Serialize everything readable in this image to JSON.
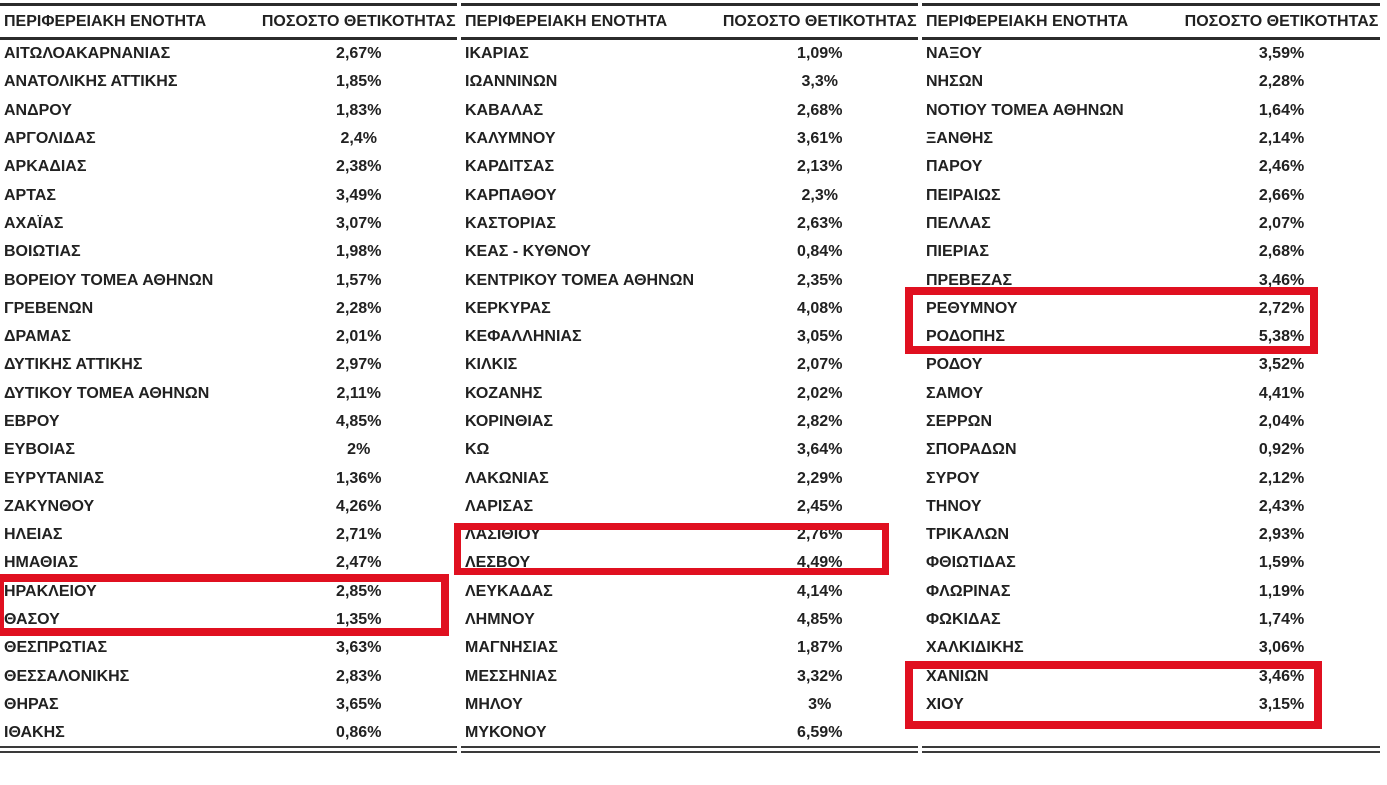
{
  "colors": {
    "highlight_red": "#e01020",
    "rule_line": "#2b2b2b",
    "text": "#212121",
    "background": "#ffffff"
  },
  "header": {
    "region_label": "ΠΕΡΙΦΕΡΕΙΑΚΗ ΕΝΟΤΗΤΑ",
    "value_label": "ΠΟΣΟΣΤΟ ΘΕΤΙΚΟΤΗΤΑΣ"
  },
  "highlighted_regions": [
    "ΗΡΑΚΛΕΙΟΥ",
    "ΛΑΣΙΘΙΟΥ",
    "ΡΕΘΥΜΝΟΥ",
    "ΧΑΝΙΩΝ"
  ],
  "tables": [
    {
      "rows": [
        {
          "region": "ΑΙΤΩΛΟΑΚΑΡΝΑΝΙΑΣ",
          "value": "2,67%",
          "highlighted": false
        },
        {
          "region": "ΑΝΑΤΟΛΙΚΗΣ ΑΤΤΙΚΗΣ",
          "value": "1,85%",
          "highlighted": false
        },
        {
          "region": "ΑΝΔΡΟΥ",
          "value": "1,83%",
          "highlighted": false
        },
        {
          "region": "ΑΡΓΟΛΙΔΑΣ",
          "value": "2,4%",
          "highlighted": false
        },
        {
          "region": "ΑΡΚΑΔΙΑΣ",
          "value": "2,38%",
          "highlighted": false
        },
        {
          "region": "ΑΡΤΑΣ",
          "value": "3,49%",
          "highlighted": false
        },
        {
          "region": "ΑΧΑΪΑΣ",
          "value": "3,07%",
          "highlighted": false
        },
        {
          "region": "ΒΟΙΩΤΙΑΣ",
          "value": "1,98%",
          "highlighted": false
        },
        {
          "region": "ΒΟΡΕΙΟΥ ΤΟΜΕΑ ΑΘΗΝΩΝ",
          "value": "1,57%",
          "highlighted": false
        },
        {
          "region": "ΓΡΕΒΕΝΩΝ",
          "value": "2,28%",
          "highlighted": false
        },
        {
          "region": "ΔΡΑΜΑΣ",
          "value": "2,01%",
          "highlighted": false
        },
        {
          "region": "ΔΥΤΙΚΗΣ ΑΤΤΙΚΗΣ",
          "value": "2,97%",
          "highlighted": false
        },
        {
          "region": "ΔΥΤΙΚΟΥ ΤΟΜΕΑ ΑΘΗΝΩΝ",
          "value": "2,11%",
          "highlighted": false
        },
        {
          "region": "ΕΒΡΟΥ",
          "value": "4,85%",
          "highlighted": false
        },
        {
          "region": "ΕΥΒΟΙΑΣ",
          "value": "2%",
          "highlighted": false
        },
        {
          "region": "ΕΥΡΥΤΑΝΙΑΣ",
          "value": "1,36%",
          "highlighted": false
        },
        {
          "region": "ΖΑΚΥΝΘΟΥ",
          "value": "4,26%",
          "highlighted": false
        },
        {
          "region": "ΗΛΕΙΑΣ",
          "value": "2,71%",
          "highlighted": false
        },
        {
          "region": "ΗΜΑΘΙΑΣ",
          "value": "2,47%",
          "highlighted": false
        },
        {
          "region": "ΗΡΑΚΛΕΙΟΥ",
          "value": "2,85%",
          "highlighted": true
        },
        {
          "region": "ΘΑΣΟΥ",
          "value": "1,35%",
          "highlighted": false
        },
        {
          "region": "ΘΕΣΠΡΩΤΙΑΣ",
          "value": "3,63%",
          "highlighted": false
        },
        {
          "region": "ΘΕΣΣΑΛΟΝΙΚΗΣ",
          "value": "2,83%",
          "highlighted": false
        },
        {
          "region": "ΘΗΡΑΣ",
          "value": "3,65%",
          "highlighted": false
        },
        {
          "region": "ΙΘΑΚΗΣ",
          "value": "0,86%",
          "highlighted": false
        }
      ]
    },
    {
      "rows": [
        {
          "region": "ΙΚΑΡΙΑΣ",
          "value": "1,09%",
          "highlighted": false
        },
        {
          "region": "ΙΩΑΝΝΙΝΩΝ",
          "value": "3,3%",
          "highlighted": false
        },
        {
          "region": "ΚΑΒΑΛΑΣ",
          "value": "2,68%",
          "highlighted": false
        },
        {
          "region": "ΚΑΛΥΜΝΟΥ",
          "value": "3,61%",
          "highlighted": false
        },
        {
          "region": "ΚΑΡΔΙΤΣΑΣ",
          "value": "2,13%",
          "highlighted": false
        },
        {
          "region": "ΚΑΡΠΑΘΟΥ",
          "value": "2,3%",
          "highlighted": false
        },
        {
          "region": "ΚΑΣΤΟΡΙΑΣ",
          "value": "2,63%",
          "highlighted": false
        },
        {
          "region": "ΚΕΑΣ - ΚΥΘΝΟΥ",
          "value": "0,84%",
          "highlighted": false
        },
        {
          "region": "ΚΕΝΤΡΙΚΟΥ ΤΟΜΕΑ ΑΘΗΝΩΝ",
          "value": "2,35%",
          "highlighted": false
        },
        {
          "region": "ΚΕΡΚΥΡΑΣ",
          "value": "4,08%",
          "highlighted": false
        },
        {
          "region": "ΚΕΦΑΛΛΗΝΙΑΣ",
          "value": "3,05%",
          "highlighted": false
        },
        {
          "region": "ΚΙΛΚΙΣ",
          "value": "2,07%",
          "highlighted": false
        },
        {
          "region": "ΚΟΖΑΝΗΣ",
          "value": "2,02%",
          "highlighted": false
        },
        {
          "region": "ΚΟΡΙΝΘΙΑΣ",
          "value": "2,82%",
          "highlighted": false
        },
        {
          "region": "ΚΩ",
          "value": "3,64%",
          "highlighted": false
        },
        {
          "region": "ΛΑΚΩΝΙΑΣ",
          "value": "2,29%",
          "highlighted": false
        },
        {
          "region": "ΛΑΡΙΣΑΣ",
          "value": "2,45%",
          "highlighted": false
        },
        {
          "region": "ΛΑΣΙΘΙΟΥ",
          "value": "2,76%",
          "highlighted": true
        },
        {
          "region": "ΛΕΣΒΟΥ",
          "value": "4,49%",
          "highlighted": false
        },
        {
          "region": "ΛΕΥΚΑΔΑΣ",
          "value": "4,14%",
          "highlighted": false
        },
        {
          "region": "ΛΗΜΝΟΥ",
          "value": "4,85%",
          "highlighted": false
        },
        {
          "region": "ΜΑΓΝΗΣΙΑΣ",
          "value": "1,87%",
          "highlighted": false
        },
        {
          "region": "ΜΕΣΣΗΝΙΑΣ",
          "value": "3,32%",
          "highlighted": false
        },
        {
          "region": "ΜΗΛΟΥ",
          "value": "3%",
          "highlighted": false
        },
        {
          "region": "ΜΥΚΟΝΟΥ",
          "value": "6,59%",
          "highlighted": false
        }
      ]
    },
    {
      "rows": [
        {
          "region": "ΝΑΞΟΥ",
          "value": "3,59%",
          "highlighted": false
        },
        {
          "region": "ΝΗΣΩΝ",
          "value": "2,28%",
          "highlighted": false
        },
        {
          "region": "ΝΟΤΙΟΥ ΤΟΜΕΑ ΑΘΗΝΩΝ",
          "value": "1,64%",
          "highlighted": false
        },
        {
          "region": "ΞΑΝΘΗΣ",
          "value": "2,14%",
          "highlighted": false
        },
        {
          "region": "ΠΑΡΟΥ",
          "value": "2,46%",
          "highlighted": false
        },
        {
          "region": "ΠΕΙΡΑΙΩΣ",
          "value": "2,66%",
          "highlighted": false
        },
        {
          "region": "ΠΕΛΛΑΣ",
          "value": "2,07%",
          "highlighted": false
        },
        {
          "region": "ΠΙΕΡΙΑΣ",
          "value": "2,68%",
          "highlighted": false
        },
        {
          "region": "ΠΡΕΒΕΖΑΣ",
          "value": "3,46%",
          "highlighted": false
        },
        {
          "region": "ΡΕΘΥΜΝΟΥ",
          "value": "2,72%",
          "highlighted": true
        },
        {
          "region": "ΡΟΔΟΠΗΣ",
          "value": "5,38%",
          "highlighted": false
        },
        {
          "region": "ΡΟΔΟΥ",
          "value": "3,52%",
          "highlighted": false
        },
        {
          "region": "ΣΑΜΟΥ",
          "value": "4,41%",
          "highlighted": false
        },
        {
          "region": "ΣΕΡΡΩΝ",
          "value": "2,04%",
          "highlighted": false
        },
        {
          "region": "ΣΠΟΡΑΔΩΝ",
          "value": "0,92%",
          "highlighted": false
        },
        {
          "region": "ΣΥΡΟΥ",
          "value": "2,12%",
          "highlighted": false
        },
        {
          "region": "ΤΗΝΟΥ",
          "value": "2,43%",
          "highlighted": false
        },
        {
          "region": "ΤΡΙΚΑΛΩΝ",
          "value": "2,93%",
          "highlighted": false
        },
        {
          "region": "ΦΘΙΩΤΙΔΑΣ",
          "value": "1,59%",
          "highlighted": false
        },
        {
          "region": "ΦΛΩΡΙΝΑΣ",
          "value": "1,19%",
          "highlighted": false
        },
        {
          "region": "ΦΩΚΙΔΑΣ",
          "value": "1,74%",
          "highlighted": false
        },
        {
          "region": "ΧΑΛΚΙΔΙΚΗΣ",
          "value": "3,06%",
          "highlighted": false
        },
        {
          "region": "ΧΑΝΙΩΝ",
          "value": "3,46%",
          "highlighted": true
        },
        {
          "region": "ΧΙΟΥ",
          "value": "3,15%",
          "highlighted": false
        }
      ]
    }
  ]
}
